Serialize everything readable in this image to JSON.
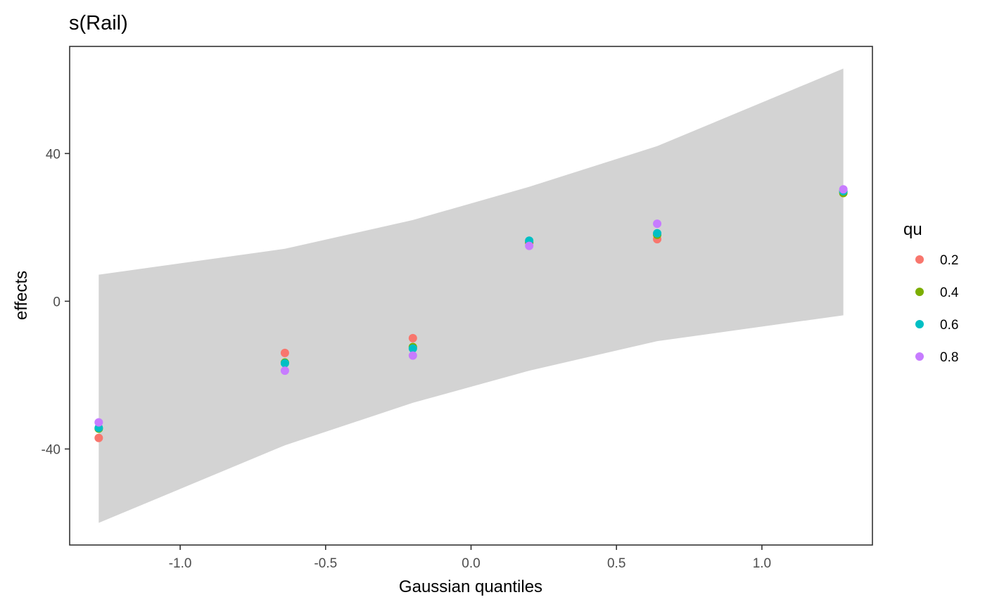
{
  "chart_data": {
    "type": "scatter",
    "title": "s(Rail)",
    "xlabel": "Gaussian quantiles",
    "ylabel": "effects",
    "xlim": [
      -1.38,
      1.38
    ],
    "ylim": [
      -66,
      69
    ],
    "x_ticks": [
      {
        "value": -1.0,
        "label": "-1.0"
      },
      {
        "value": -0.5,
        "label": "-0.5"
      },
      {
        "value": 0.0,
        "label": "0.0"
      },
      {
        "value": 0.5,
        "label": "0.5"
      },
      {
        "value": 1.0,
        "label": "1.0"
      }
    ],
    "y_ticks": [
      {
        "value": -40,
        "label": "-40"
      },
      {
        "value": 0,
        "label": "0"
      },
      {
        "value": 40,
        "label": "40"
      }
    ],
    "grid": false,
    "confidence_band": {
      "color": "#d3d3d3",
      "x": [
        -1.28,
        -0.64,
        -0.2,
        0.2,
        0.64,
        1.28
      ],
      "upper": [
        7.2,
        14.2,
        22.0,
        31.0,
        42.0,
        63.0
      ],
      "lower": [
        -60.0,
        -39.0,
        -27.5,
        -18.8,
        -10.8,
        -3.8
      ]
    },
    "legend": {
      "title": "qu",
      "position": "right"
    },
    "series": [
      {
        "name": "0.2",
        "color": "#F8766D",
        "x": [
          -1.28,
          -0.64,
          -0.2,
          0.2,
          0.64,
          1.28
        ],
        "y": [
          -37.0,
          -14.0,
          -10.0,
          15.8,
          16.8,
          29.8
        ]
      },
      {
        "name": "0.4",
        "color": "#7CAE00",
        "x": [
          -1.28,
          -0.64,
          -0.2,
          0.2,
          0.64,
          1.28
        ],
        "y": [
          -34.5,
          -16.6,
          -12.4,
          16.0,
          18.0,
          29.3
        ]
      },
      {
        "name": "0.6",
        "color": "#00BFC4",
        "x": [
          -1.28,
          -0.64,
          -0.2,
          0.2,
          0.64,
          1.28
        ],
        "y": [
          -34.3,
          -16.8,
          -12.8,
          16.4,
          18.4,
          29.8
        ]
      },
      {
        "name": "0.8",
        "color": "#C77CFF",
        "x": [
          -1.28,
          -0.64,
          -0.2,
          0.2,
          0.64,
          1.28
        ],
        "y": [
          -32.8,
          -18.8,
          -14.7,
          15.0,
          21.0,
          30.3
        ]
      }
    ]
  }
}
